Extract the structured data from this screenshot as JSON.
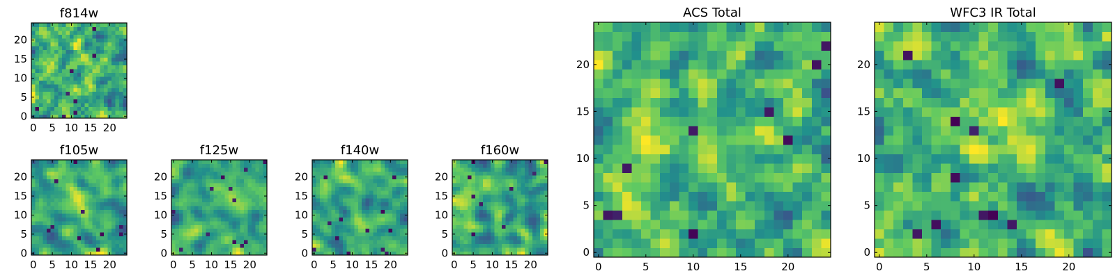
{
  "chart_data": [
    {
      "type": "heatmap",
      "title": "f814w",
      "xticks": [
        "0",
        "5",
        "10",
        "15",
        "20"
      ],
      "yticks": [
        "0",
        "5",
        "10",
        "15",
        "20"
      ],
      "xlim": [
        0,
        25
      ],
      "ylim": [
        0,
        25
      ],
      "grid_size": 25,
      "seed": 814,
      "smooth": 1,
      "dark_spots": 8,
      "bright_boost": 0.1
    },
    {
      "type": "heatmap",
      "title": "f105w",
      "xticks": [
        "0",
        "5",
        "10",
        "15",
        "20"
      ],
      "yticks": [
        "0",
        "5",
        "10",
        "15",
        "20"
      ],
      "xlim": [
        0,
        25
      ],
      "ylim": [
        0,
        25
      ],
      "grid_size": 25,
      "seed": 105,
      "smooth": 2,
      "dark_spots": 10,
      "bright_boost": 0.15
    },
    {
      "type": "heatmap",
      "title": "f125w",
      "xticks": [
        "0",
        "5",
        "10",
        "15",
        "20"
      ],
      "yticks": [
        "0",
        "5",
        "10",
        "15",
        "20"
      ],
      "xlim": [
        0,
        25
      ],
      "ylim": [
        0,
        25
      ],
      "grid_size": 25,
      "seed": 125,
      "smooth": 2,
      "dark_spots": 12,
      "bright_boost": 0.05
    },
    {
      "type": "heatmap",
      "title": "f140w",
      "xticks": [
        "0",
        "5",
        "10",
        "15",
        "20"
      ],
      "yticks": [
        "0",
        "5",
        "10",
        "15",
        "20"
      ],
      "xlim": [
        0,
        25
      ],
      "ylim": [
        0,
        25
      ],
      "grid_size": 25,
      "seed": 140,
      "smooth": 2,
      "dark_spots": 12,
      "bright_boost": 0.05
    },
    {
      "type": "heatmap",
      "title": "f160w",
      "xticks": [
        "0",
        "5",
        "10",
        "15",
        "20"
      ],
      "yticks": [
        "0",
        "5",
        "10",
        "15",
        "20"
      ],
      "xlim": [
        0,
        25
      ],
      "ylim": [
        0,
        25
      ],
      "grid_size": 25,
      "seed": 160,
      "smooth": 2,
      "dark_spots": 9,
      "bright_boost": 0.05
    },
    {
      "type": "heatmap",
      "title": "ACS Total",
      "xticks": [
        "0",
        "5",
        "10",
        "15",
        "20"
      ],
      "yticks": [
        "0",
        "5",
        "10",
        "15",
        "20"
      ],
      "xlim": [
        0,
        25
      ],
      "ylim": [
        0,
        25
      ],
      "grid_size": 25,
      "seed": 901,
      "smooth": 1,
      "dark_spots": 9,
      "bright_boost": 0.18
    },
    {
      "type": "heatmap",
      "title": "WFC3 IR Total",
      "xticks": [
        "0",
        "5",
        "10",
        "15",
        "20"
      ],
      "yticks": [
        "0",
        "5",
        "10",
        "15",
        "20"
      ],
      "xlim": [
        0,
        25
      ],
      "ylim": [
        0,
        25
      ],
      "grid_size": 25,
      "seed": 902,
      "smooth": 1,
      "dark_spots": 11,
      "bright_boost": 0.12
    }
  ],
  "colormap": [
    "#440154",
    "#3b528b",
    "#21918c",
    "#5ec962",
    "#fde725"
  ]
}
